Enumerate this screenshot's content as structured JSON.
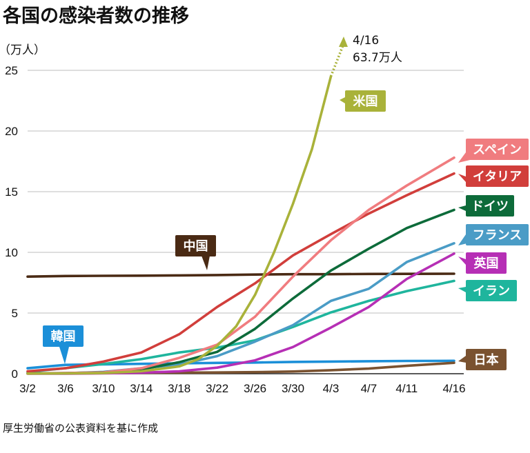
{
  "chart_data": {
    "type": "line",
    "title": "各国の感染者数の推移",
    "unit_label": "（万人）",
    "source": "厚生労働省の公表資料を基に作成",
    "ylim": [
      0,
      25
    ],
    "yticks": [
      0,
      5,
      10,
      15,
      20,
      25
    ],
    "grid": true,
    "x_tick_labels": [
      "3/2",
      "3/6",
      "3/10",
      "3/14",
      "3/18",
      "3/22",
      "3/26",
      "3/30",
      "4/3",
      "4/7",
      "4/11",
      "4/16"
    ],
    "x_tick_days": [
      0,
      4,
      8,
      12,
      16,
      20,
      24,
      28,
      32,
      36,
      40,
      45
    ],
    "x_days": [
      0,
      4,
      8,
      12,
      16,
      20,
      24,
      28,
      32,
      36,
      40,
      45
    ],
    "annotation": {
      "date": "4/16",
      "value_text": "63.7万人",
      "series": "米国",
      "value": 63.7
    },
    "series": [
      {
        "name": "中国",
        "color": "#4a2a14",
        "values": [
          8.0,
          8.05,
          8.07,
          8.08,
          8.1,
          8.13,
          8.17,
          8.2,
          8.2,
          8.22,
          8.23,
          8.24
        ]
      },
      {
        "name": "韓国",
        "color": "#1b8fd8",
        "values": [
          0.45,
          0.73,
          0.77,
          0.81,
          0.85,
          0.89,
          0.92,
          0.97,
          1.0,
          1.03,
          1.05,
          1.06
        ]
      },
      {
        "name": "日本",
        "color": "#7a5230",
        "values": [
          0.03,
          0.04,
          0.05,
          0.07,
          0.09,
          0.1,
          0.13,
          0.18,
          0.29,
          0.42,
          0.65,
          0.9
        ]
      },
      {
        "name": "イラン",
        "color": "#1fb59d",
        "values": [
          0.15,
          0.46,
          0.8,
          1.2,
          1.75,
          2.15,
          2.75,
          3.85,
          5.05,
          6.0,
          6.8,
          7.65
        ]
      },
      {
        "name": "英国",
        "color": "#b62fb5",
        "values": [
          0.0,
          0.0,
          0.03,
          0.08,
          0.2,
          0.5,
          1.1,
          2.2,
          3.8,
          5.5,
          7.8,
          9.9
        ]
      },
      {
        "name": "フランス",
        "color": "#4a9cc6",
        "values": [
          0.02,
          0.04,
          0.15,
          0.45,
          0.75,
          1.45,
          2.65,
          4.0,
          6.0,
          7.0,
          9.2,
          10.75
        ]
      },
      {
        "name": "ドイツ",
        "color": "#0d6b3a",
        "values": [
          0.02,
          0.05,
          0.12,
          0.35,
          0.95,
          1.8,
          3.7,
          6.2,
          8.5,
          10.3,
          12.0,
          13.5
        ]
      },
      {
        "name": "イタリア",
        "color": "#d13e3b",
        "values": [
          0.2,
          0.45,
          1.0,
          1.75,
          3.25,
          5.5,
          7.45,
          9.75,
          11.5,
          13.2,
          14.7,
          16.5
        ]
      },
      {
        "name": "スペイン",
        "color": "#f07c7f",
        "values": [
          0.01,
          0.05,
          0.1,
          0.45,
          1.3,
          2.4,
          4.7,
          8.0,
          11.0,
          13.5,
          15.5,
          17.8
        ]
      }
    ],
    "us_series": {
      "name": "米国",
      "color": "#a9b23a",
      "x_days": [
        0,
        4,
        8,
        12,
        16,
        18,
        20,
        22,
        24,
        26,
        28,
        30,
        32
      ],
      "values": [
        0.01,
        0.02,
        0.05,
        0.2,
        0.6,
        1.2,
        2.3,
        3.9,
        6.5,
        10.0,
        14.0,
        18.5,
        24.5
      ]
    }
  }
}
